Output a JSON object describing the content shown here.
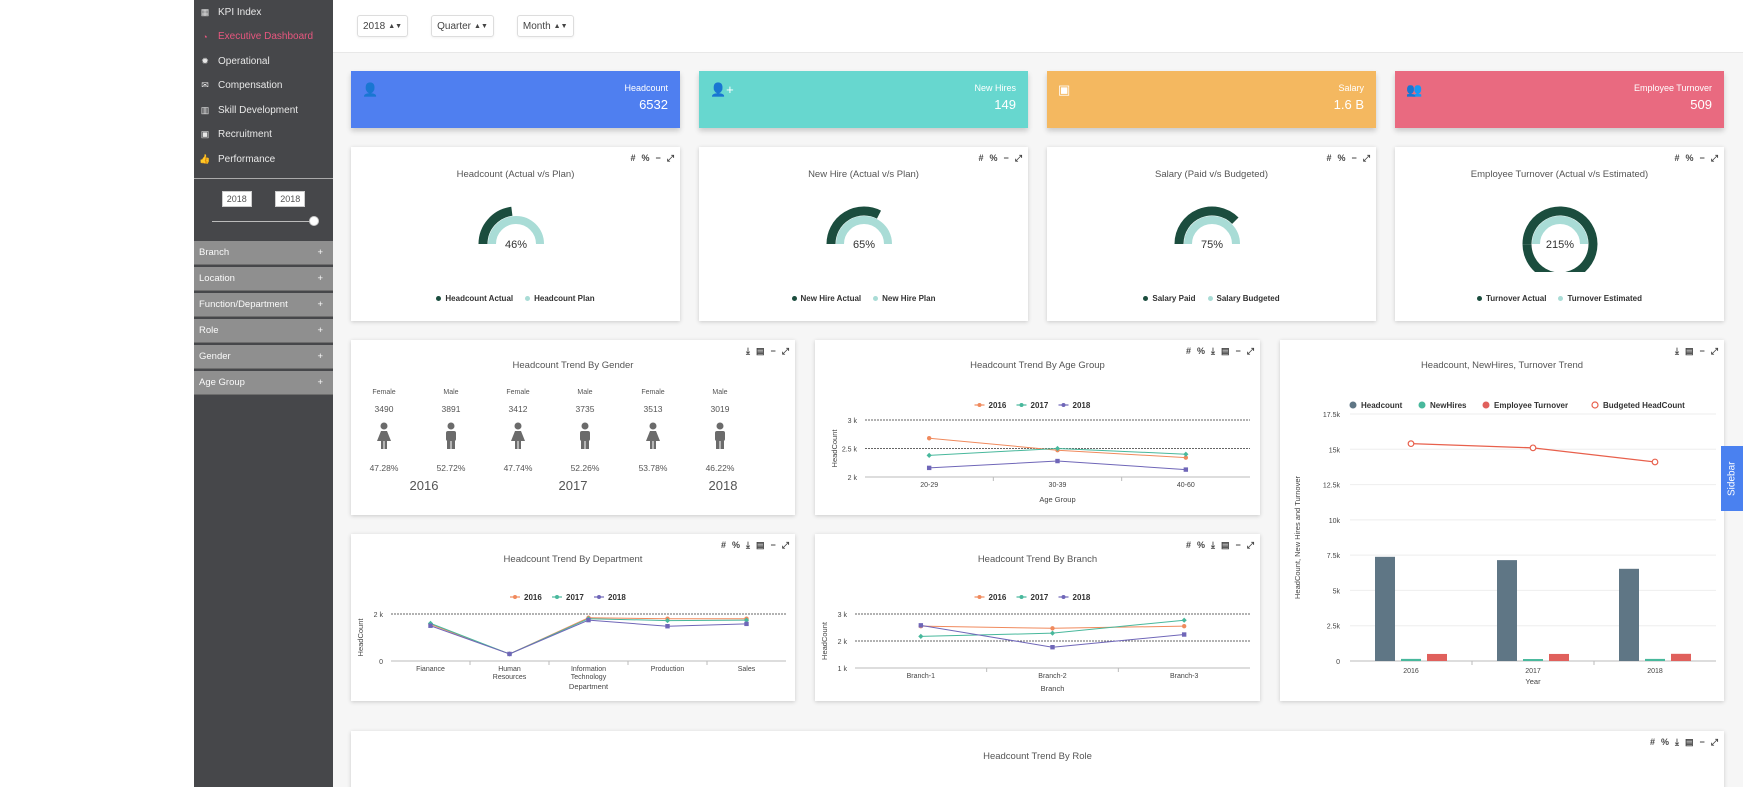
{
  "sidebar": {
    "nav": [
      {
        "label": "KPI Index",
        "icon": "table-icon"
      },
      {
        "label": "Executive Dashboard",
        "icon": "dashboard-icon",
        "active": true
      },
      {
        "label": "Operational",
        "icon": "gear-icon"
      },
      {
        "label": "Compensation",
        "icon": "envelope-icon"
      },
      {
        "label": "Skill Development",
        "icon": "bar-chart-icon"
      },
      {
        "label": "Recruitment",
        "icon": "briefcase-icon"
      },
      {
        "label": "Performance",
        "icon": "thumbs-up-icon"
      }
    ],
    "year_from": "2018",
    "year_to": "2018",
    "slider_value": 1.0,
    "filters": [
      "Branch",
      "Location",
      "Function/Department",
      "Role",
      "Gender",
      "Age Group"
    ],
    "filter_expand": "+"
  },
  "topbar": {
    "year": "2018",
    "period": "Quarter",
    "granularity": "Month"
  },
  "kpis": [
    {
      "label": "Headcount",
      "value": "6532",
      "color": "#4f7ff0",
      "icon": "user-icon"
    },
    {
      "label": "New Hires",
      "value": "149",
      "color": "#67d7cf",
      "icon": "add-user-icon"
    },
    {
      "label": "Salary",
      "value": "1.6 B",
      "color": "#f4b860",
      "icon": "money-icon"
    },
    {
      "label": "Employee Turnover",
      "value": "509",
      "color": "#e96a80",
      "icon": "users-icon"
    }
  ],
  "tools": {
    "hash": "#",
    "percent": "%",
    "minimize": "−",
    "expand": "⤢",
    "download": "⤓",
    "table": "▤"
  },
  "gauges": [
    {
      "title": "Headcount (Actual v/s Plan)",
      "percent": 46,
      "label": "46%",
      "legend": [
        "Headcount Actual",
        "Headcount Plan"
      ]
    },
    {
      "title": "New Hire (Actual v/s Plan)",
      "percent": 65,
      "label": "65%",
      "legend": [
        "New Hire Actual",
        "New Hire Plan"
      ]
    },
    {
      "title": "Salary (Paid v/s Budgeted)",
      "percent": 75,
      "label": "75%",
      "legend": [
        "Salary Paid",
        "Salary Budgeted"
      ]
    },
    {
      "title": "Employee Turnover (Actual v/s Estimated)",
      "percent": 215,
      "label": "215%",
      "legend": [
        "Turnover Actual",
        "Turnover Estimated"
      ]
    }
  ],
  "gauge_colors": {
    "actual": "#1b4d3e",
    "plan": "#a9dcd6"
  },
  "gender": {
    "title": "Headcount Trend By Gender",
    "cols": [
      {
        "gender": "Female",
        "count": "3490",
        "pct": "47.28%"
      },
      {
        "gender": "Male",
        "count": "3891",
        "pct": "52.72%"
      },
      {
        "gender": "Female",
        "count": "3412",
        "pct": "47.74%"
      },
      {
        "gender": "Male",
        "count": "3735",
        "pct": "52.26%"
      },
      {
        "gender": "Female",
        "count": "3513",
        "pct": "53.78%"
      },
      {
        "gender": "Male",
        "count": "3019",
        "pct": "46.22%"
      }
    ],
    "years": [
      "2016",
      "2017",
      "2018"
    ]
  },
  "series_legend": [
    "2016",
    "2017",
    "2018"
  ],
  "series_colors": [
    "#f08a5d",
    "#48b89c",
    "#6f66b8"
  ],
  "age_chart_title": "Headcount Trend By Age Group",
  "dept_chart_title": "Headcount Trend By Department",
  "branch_chart_title": "Headcount Trend By Branch",
  "trend_chart_title": "Headcount, NewHires, Turnover Trend",
  "role_chart_title": "Headcount Trend By Role",
  "chart_data": [
    {
      "type": "line",
      "title": "Headcount Trend By Age Group",
      "xlabel": "Age Group",
      "ylabel": "HeadCount",
      "categories": [
        "20-29",
        "30-39",
        "40-60"
      ],
      "yticks": [
        "2 k",
        "2.5 k",
        "3 k"
      ],
      "ylim": [
        2000,
        3000
      ],
      "series": [
        {
          "name": "2016",
          "values": [
            2680,
            2470,
            2340
          ]
        },
        {
          "name": "2017",
          "values": [
            2380,
            2500,
            2400
          ]
        },
        {
          "name": "2018",
          "values": [
            2160,
            2280,
            2130
          ]
        }
      ]
    },
    {
      "type": "line",
      "title": "Headcount Trend By Department",
      "xlabel": "Department",
      "ylabel": "HeadCount",
      "categories": [
        "Fianance",
        "Human Resources",
        "Information Technology",
        "Production",
        "Sales"
      ],
      "yticks": [
        "0",
        "2 k"
      ],
      "ylim": [
        0,
        2000
      ],
      "series": [
        {
          "name": "2016",
          "values": [
            1560,
            300,
            1840,
            1800,
            1800
          ]
        },
        {
          "name": "2017",
          "values": [
            1600,
            300,
            1800,
            1720,
            1740
          ]
        },
        {
          "name": "2018",
          "values": [
            1500,
            300,
            1740,
            1480,
            1580
          ]
        }
      ]
    },
    {
      "type": "line",
      "title": "Headcount Trend By Branch",
      "xlabel": "Branch",
      "ylabel": "HeadCount",
      "categories": [
        "Branch-1",
        "Branch-2",
        "Branch-3"
      ],
      "yticks": [
        "1 k",
        "2 k",
        "3 k"
      ],
      "ylim": [
        1000,
        3000
      ],
      "series": [
        {
          "name": "2016",
          "values": [
            2550,
            2470,
            2550
          ]
        },
        {
          "name": "2017",
          "values": [
            2170,
            2290,
            2770
          ]
        },
        {
          "name": "2018",
          "values": [
            2580,
            1770,
            2240
          ]
        }
      ]
    },
    {
      "type": "bar",
      "title": "Headcount, NewHires, Turnover Trend",
      "xlabel": "Year",
      "ylabel": "HeadCount, New Hires and Turnover",
      "categories": [
        "2016",
        "2017",
        "2018"
      ],
      "yticks": [
        "0",
        "2.5k",
        "5k",
        "7.5k",
        "10k",
        "12.5k",
        "15k",
        "17.5k"
      ],
      "ylim": [
        0,
        17500
      ],
      "series": [
        {
          "name": "Headcount",
          "values": [
            7381,
            7147,
            6532
          ],
          "color": "#5f7685"
        },
        {
          "name": "NewHires",
          "values": [
            150,
            140,
            149
          ],
          "color": "#48b89c"
        },
        {
          "name": "Employee Turnover",
          "values": [
            500,
            500,
            509
          ],
          "color": "#e0605c"
        },
        {
          "name": "Budgeted HeadCount",
          "values": [
            15400,
            15100,
            14100
          ],
          "color": "#e8604c",
          "line": true
        }
      ]
    }
  ],
  "side_tab": "Sidebar"
}
